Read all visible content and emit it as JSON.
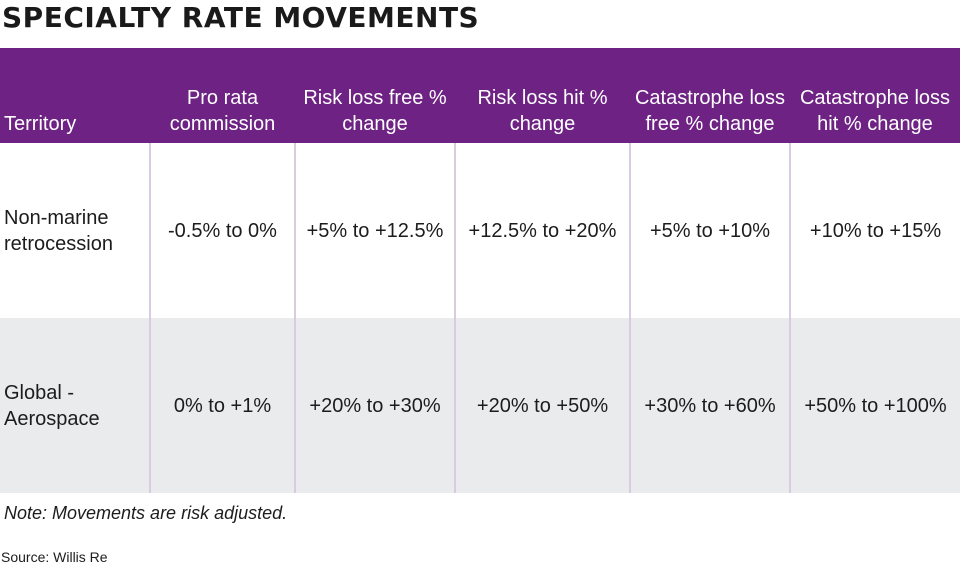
{
  "title": "SPECIALTY RATE MOVEMENTS",
  "table": {
    "headers": [
      "Territory",
      "Pro rata commission",
      "Risk loss free % change",
      "Risk loss hit % change",
      "Catastrophe loss free % change",
      "Catastrophe loss hit % change"
    ],
    "rows": [
      [
        "Non-marine retrocession",
        "-0.5% to 0%",
        "+5% to +12.5%",
        "+12.5% to +20%",
        "+5% to +10%",
        "+10% to +15%"
      ],
      [
        "Global - Aerospace",
        "0% to +1%",
        "+20% to +30%",
        "+20% to +50%",
        "+30% to +60%",
        "+50% to +100%"
      ]
    ]
  },
  "note": "Note: Movements are risk adjusted.",
  "source": "Source: Willis Re",
  "colors": {
    "header_bg": "#6e2384",
    "header_text": "#ffffff",
    "alt_row_bg": "#eaebec",
    "divider": "#d9cbe0"
  },
  "chart_data": {
    "type": "table",
    "title": "SPECIALTY RATE MOVEMENTS",
    "columns": [
      "Territory",
      "Pro rata commission",
      "Risk loss free % change",
      "Risk loss hit % change",
      "Catastrophe loss free % change",
      "Catastrophe loss hit % change"
    ],
    "rows": [
      [
        "Non-marine retrocession",
        "-0.5% to 0%",
        "+5% to +12.5%",
        "+12.5% to +20%",
        "+5% to +10%",
        "+10% to +15%"
      ],
      [
        "Global - Aerospace",
        "0% to +1%",
        "+20% to +30%",
        "+20% to +50%",
        "+30% to +60%",
        "+50% to +100%"
      ]
    ],
    "ranges_percent": [
      {
        "territory": "Non-marine retrocession",
        "values": [
          [
            -0.5,
            0
          ],
          [
            5,
            12.5
          ],
          [
            12.5,
            20
          ],
          [
            5,
            10
          ],
          [
            10,
            15
          ]
        ]
      },
      {
        "territory": "Global - Aerospace",
        "values": [
          [
            0,
            1
          ],
          [
            20,
            30
          ],
          [
            20,
            50
          ],
          [
            30,
            60
          ],
          [
            50,
            100
          ]
        ]
      }
    ]
  }
}
